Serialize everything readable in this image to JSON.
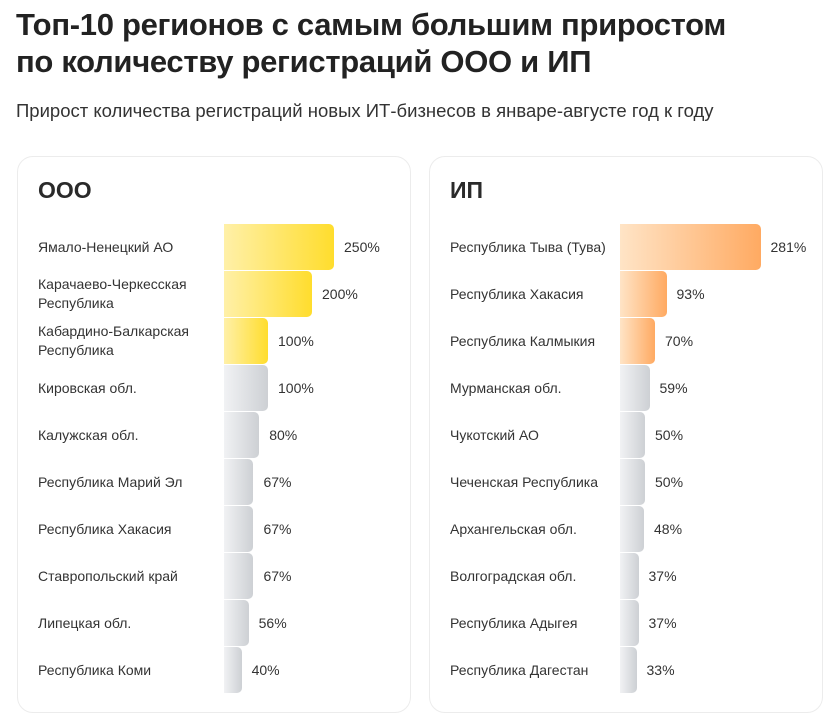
{
  "header": {
    "title_line1": "Топ-10 регионов с самым большим приростом",
    "title_line2": "по количеству регистраций ООО и ИП",
    "subtitle": "Прирост количества регистраций новых ИТ-бизнесов в январе-августе год к году"
  },
  "colors": {
    "ooo_highlight": "#ffdd2d",
    "ip_highlight": "#ffaa62",
    "other": "#cdd0d4"
  },
  "chart_data": [
    {
      "type": "bar",
      "orientation": "horizontal",
      "title": "ООО",
      "unit": "%",
      "highlight_top": 3,
      "categories": [
        "Ямало-Ненецкий АО",
        "Карачаево-Черкесская Республика",
        "Кабардино-Балкарская Республика",
        "Кировская обл.",
        "Калужская обл.",
        "Республика Марий Эл",
        "Республика Хакасия",
        "Ставропольский край",
        "Липецкая обл.",
        "Республика Коми"
      ],
      "values": [
        250,
        200,
        100,
        100,
        80,
        67,
        67,
        67,
        56,
        40
      ],
      "labels": [
        "250%",
        "200%",
        "100%",
        "100%",
        "80%",
        "67%",
        "67%",
        "67%",
        "56%",
        "40%"
      ]
    },
    {
      "type": "bar",
      "orientation": "horizontal",
      "title": "ИП",
      "unit": "%",
      "highlight_top": 3,
      "categories": [
        "Республика Тыва (Тува)",
        "Республика Хакасия",
        "Республика Калмыкия",
        "Мурманская обл.",
        "Чукотский АО",
        "Чеченская Республика",
        "Архангельская обл.",
        "Волгоградская обл.",
        "Республика Адыгея",
        "Республика Дагестан"
      ],
      "values": [
        281,
        93,
        70,
        59,
        50,
        50,
        48,
        37,
        37,
        33
      ],
      "labels": [
        "281%",
        "93%",
        "70%",
        "59%",
        "50%",
        "50%",
        "48%",
        "37%",
        "37%",
        "33%"
      ]
    }
  ]
}
